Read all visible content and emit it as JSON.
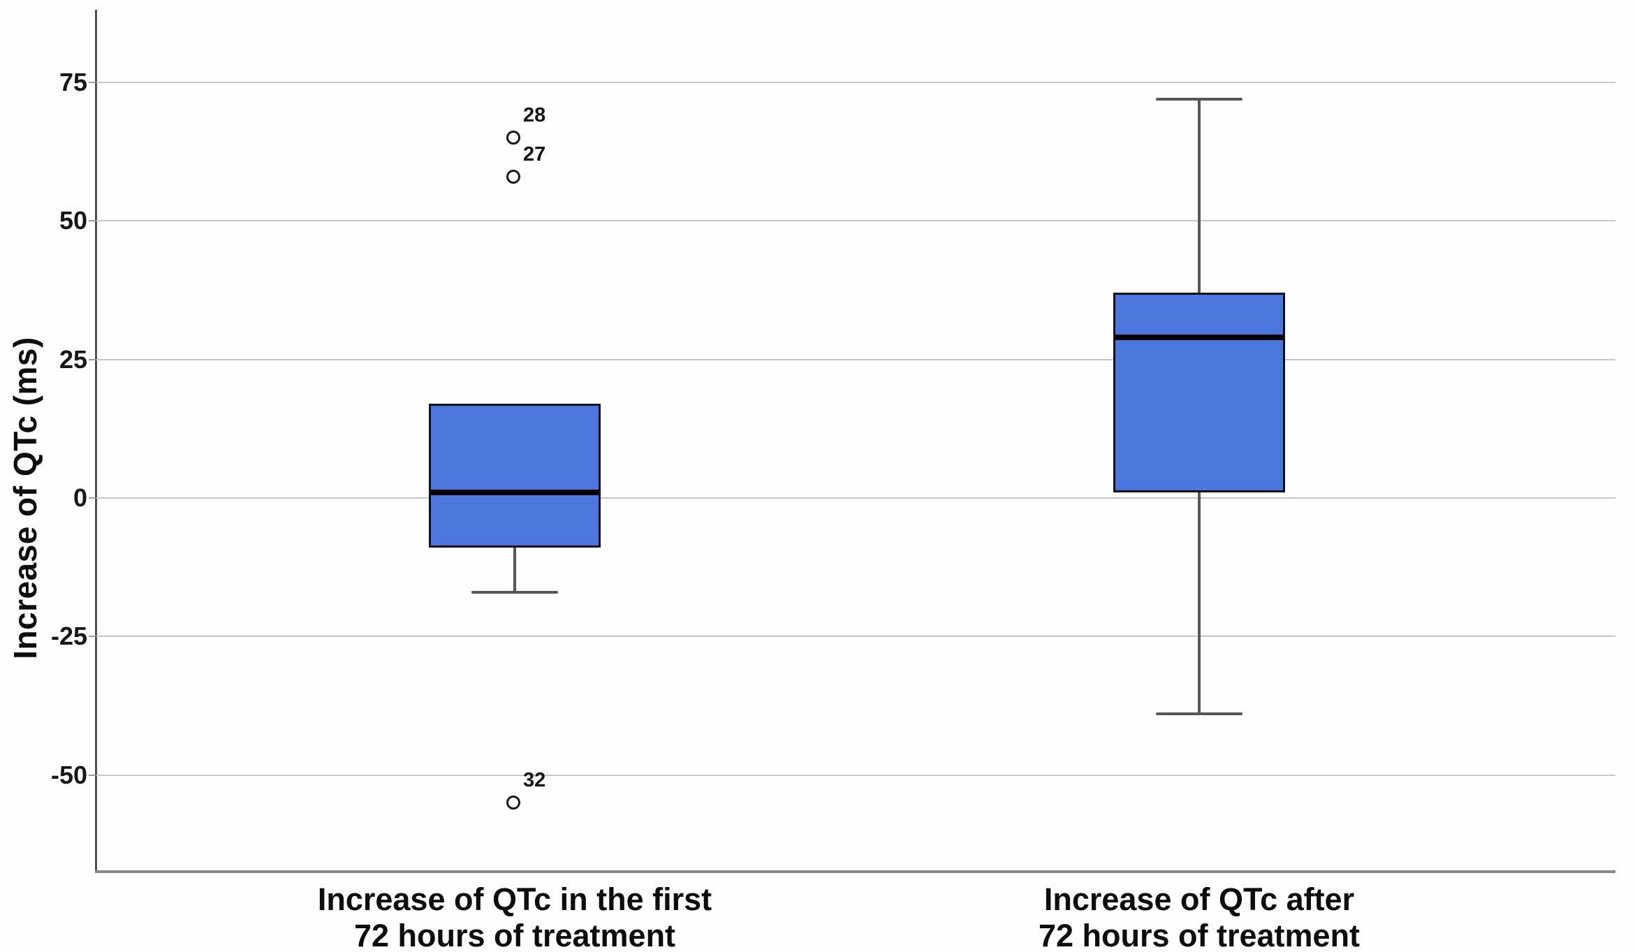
{
  "chart_data": {
    "type": "boxplot",
    "title": "",
    "xlabel": "",
    "ylabel": "Increase of QTc (ms)",
    "ylim": [
      -67,
      89
    ],
    "yticks": [
      75,
      50,
      25,
      0,
      -25,
      -50
    ],
    "grid": true,
    "legend": "none",
    "categories": [
      "Increase of QTc in the first 72 hours of treatment",
      "Increase of QTc after 72 hours of treatment"
    ],
    "series": [
      {
        "name": "Increase of QTc in the first 72 hours of treatment",
        "label_lines": [
          "Increase of QTc in the first",
          "72 hours of treatment"
        ],
        "q1": -9,
        "median": 1,
        "q3": 17,
        "whisker_low": -17,
        "whisker_high": 17,
        "outliers": [
          {
            "value": 65,
            "case": "28"
          },
          {
            "value": 58,
            "case": "27"
          },
          {
            "value": -55,
            "case": "32"
          }
        ]
      },
      {
        "name": "Increase of QTc after 72 hours of treatment",
        "label_lines": [
          "Increase of QTc after",
          "72 hours of treatment"
        ],
        "q1": 1,
        "median": 29,
        "q3": 37,
        "whisker_low": -39,
        "whisker_high": 72,
        "outliers": []
      }
    ],
    "colors": {
      "box_fill": "#4a76dd",
      "box_border": "#10101a",
      "median": "#000000",
      "whisker": "#575757",
      "gridline": "#c7c7c7",
      "y_axis": "#4f4f4f",
      "x_axis": "#8a8a8a",
      "text": "#0d0d0d",
      "outlier_stroke": "#1a1a1a",
      "background": "#fdfdfd"
    }
  }
}
